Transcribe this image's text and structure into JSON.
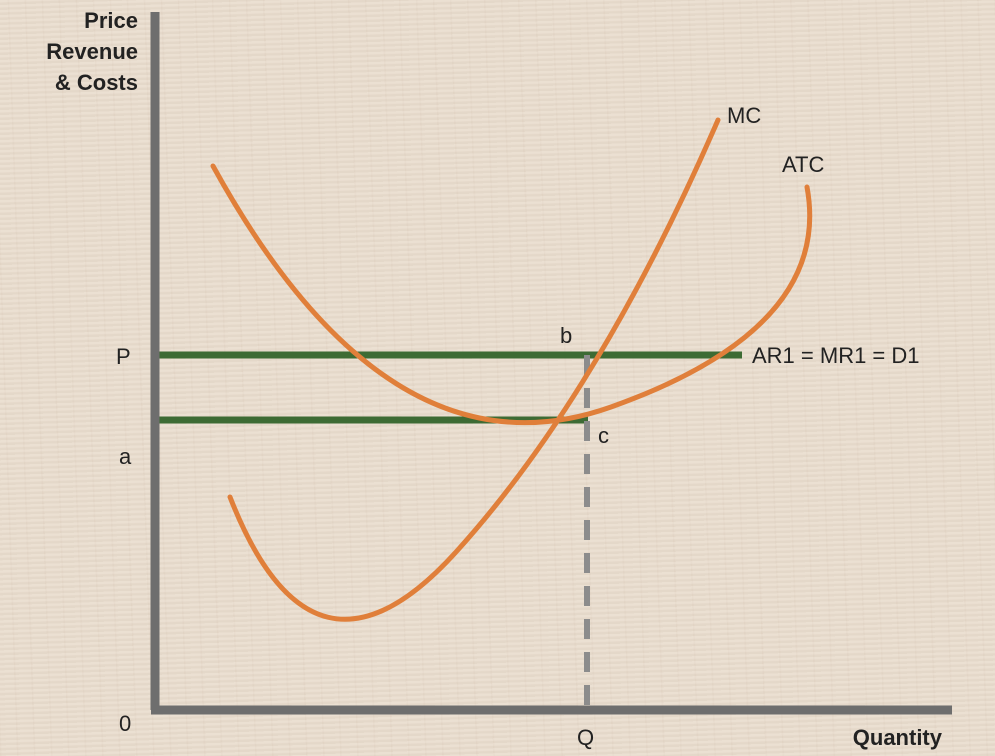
{
  "axes": {
    "y_label_lines": [
      "Price",
      "Revenue",
      "& Costs"
    ],
    "x_label": "Quantity",
    "origin": "0"
  },
  "labels": {
    "price": "P",
    "avg_cost_level": "a",
    "quantity": "Q",
    "point_b": "b",
    "point_c": "c"
  },
  "curves": {
    "mc": "MC",
    "atc": "ATC",
    "demand": "AR1 = MR1 = D1"
  },
  "colors": {
    "curve": "#e07f3a",
    "line": "#3d6b34",
    "axis": "#6e6e6e",
    "dashed": "#8c8c8c"
  }
}
